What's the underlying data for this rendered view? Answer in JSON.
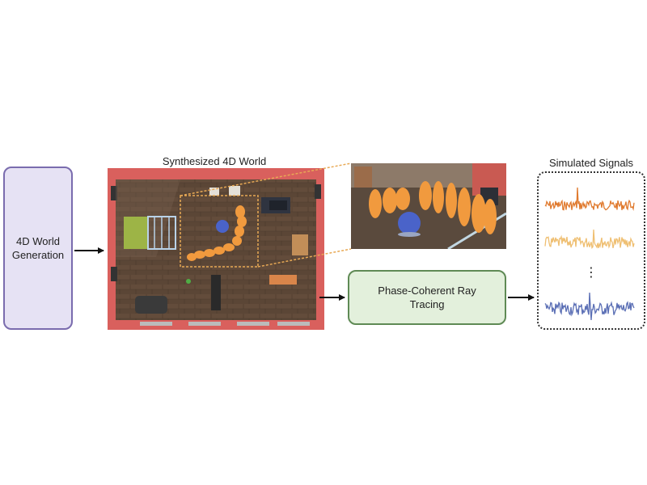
{
  "diagram": {
    "generation_box": {
      "label": "4D World Generation"
    },
    "world": {
      "title": "Synthesized 4D World"
    },
    "ray_tracing_box": {
      "label": "Phase-Coherent Ray Tracing"
    },
    "signals": {
      "title": "Simulated Signals",
      "ellipsis": "⋮",
      "colors": [
        "#e07a2e",
        "#efbf72",
        "#5b6fb5"
      ]
    }
  }
}
